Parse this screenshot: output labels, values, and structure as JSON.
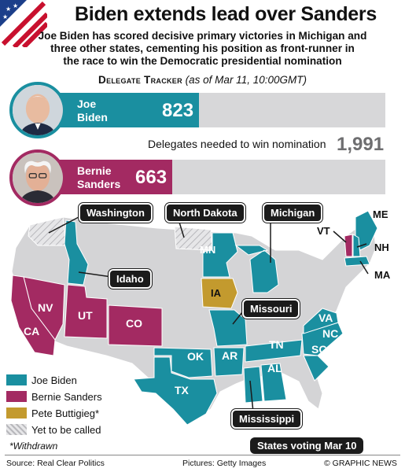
{
  "title": "Biden extends lead over Sanders",
  "subtitle_lines": [
    "Joe Biden has scored decisive primary victories in Michigan and",
    "three other states, cementing his position as front-runner in",
    "the race to win the Democratic presidential nomination"
  ],
  "tracker": {
    "heading": "Delegate Tracker",
    "asof": "(as of Mar 11, 10:00GMT)",
    "needed_label": "Delegates needed to win nomination",
    "needed_value": 1991,
    "needed_display": "1,991",
    "candidates": [
      {
        "name_line1": "Joe",
        "name_line2": "Biden",
        "delegates": 823,
        "color": "#1a8fa0"
      },
      {
        "name_line1": "Bernie",
        "name_line2": "Sanders",
        "delegates": 663,
        "color": "#a32a62"
      }
    ]
  },
  "map_labels": {
    "washington": "Washington",
    "north_dakota": "North Dakota",
    "michigan": "Michigan",
    "idaho": "Idaho",
    "missouri": "Missouri",
    "mississippi": "Mississippi",
    "me": "ME",
    "vt": "VT",
    "nh": "NH",
    "ma": "MA",
    "mn": "MN",
    "ia": "IA",
    "nv": "NV",
    "ca": "CA",
    "ut": "UT",
    "co": "CO",
    "ok": "OK",
    "tx": "TX",
    "ar": "AR",
    "tn": "TN",
    "va": "VA",
    "nc": "NC",
    "sc": "SC",
    "al": "AL"
  },
  "legend": [
    {
      "label": "Joe Biden",
      "color": "#1a8fa0"
    },
    {
      "label": "Bernie Sanders",
      "color": "#a32a62"
    },
    {
      "label": "Pete Buttigieg*",
      "color": "#c39a2e"
    },
    {
      "label": "Yet to be called",
      "color": "hatch"
    }
  ],
  "withdrawn_note": "*Withdrawn",
  "states_voting": "States voting Mar 10",
  "footer": {
    "source": "Source: Real Clear Politics",
    "pictures": "Pictures: Getty Images",
    "credit": "© GRAPHIC NEWS"
  },
  "colors": {
    "biden": "#1a8fa0",
    "sanders": "#a32a62",
    "buttigieg": "#c39a2e",
    "other": "#d4d4d6",
    "bar_bg": "#d7d7d9"
  }
}
